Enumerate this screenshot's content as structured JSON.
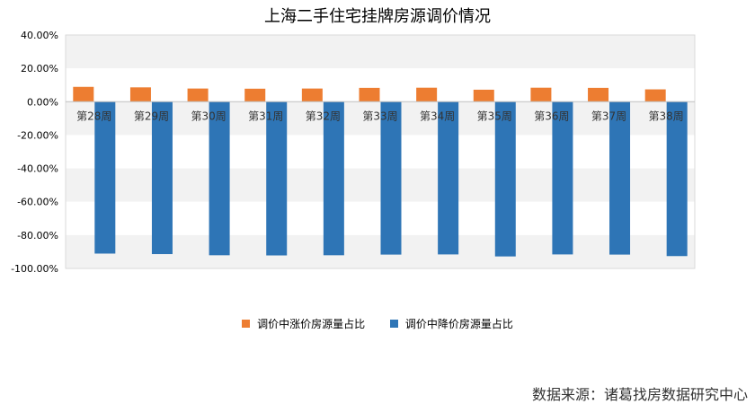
{
  "chart_data": {
    "type": "bar",
    "title": "上海二手住宅挂牌房源调价情况",
    "categories": [
      "第28周",
      "第29周",
      "第30周",
      "第31周",
      "第32周",
      "第33周",
      "第34周",
      "第35周",
      "第36周",
      "第37周",
      "第38周"
    ],
    "series": [
      {
        "name": "调价中涨价房源量占比",
        "color": "#ED7D31",
        "values": [
          8.9,
          8.6,
          7.9,
          7.8,
          7.9,
          8.3,
          8.4,
          7.2,
          8.4,
          8.3,
          7.4
        ]
      },
      {
        "name": "调价中降价房源量占比",
        "color": "#2E75B6",
        "values": [
          -91.1,
          -91.4,
          -92.1,
          -92.2,
          -92.1,
          -91.7,
          -91.6,
          -92.8,
          -91.6,
          -91.7,
          -92.6
        ]
      }
    ],
    "ylim": [
      -100,
      40
    ],
    "yticks": [
      "40.00%",
      "20.00%",
      "0.00%",
      "-20.00%",
      "-40.00%",
      "-60.00%",
      "-80.00%",
      "-100.00%"
    ],
    "grid": true,
    "legend": "bottom",
    "band_colors": [
      "#F2F2F2",
      "#FFFFFF"
    ]
  },
  "source_note": "数据来源：诸葛找房数据研究中心"
}
